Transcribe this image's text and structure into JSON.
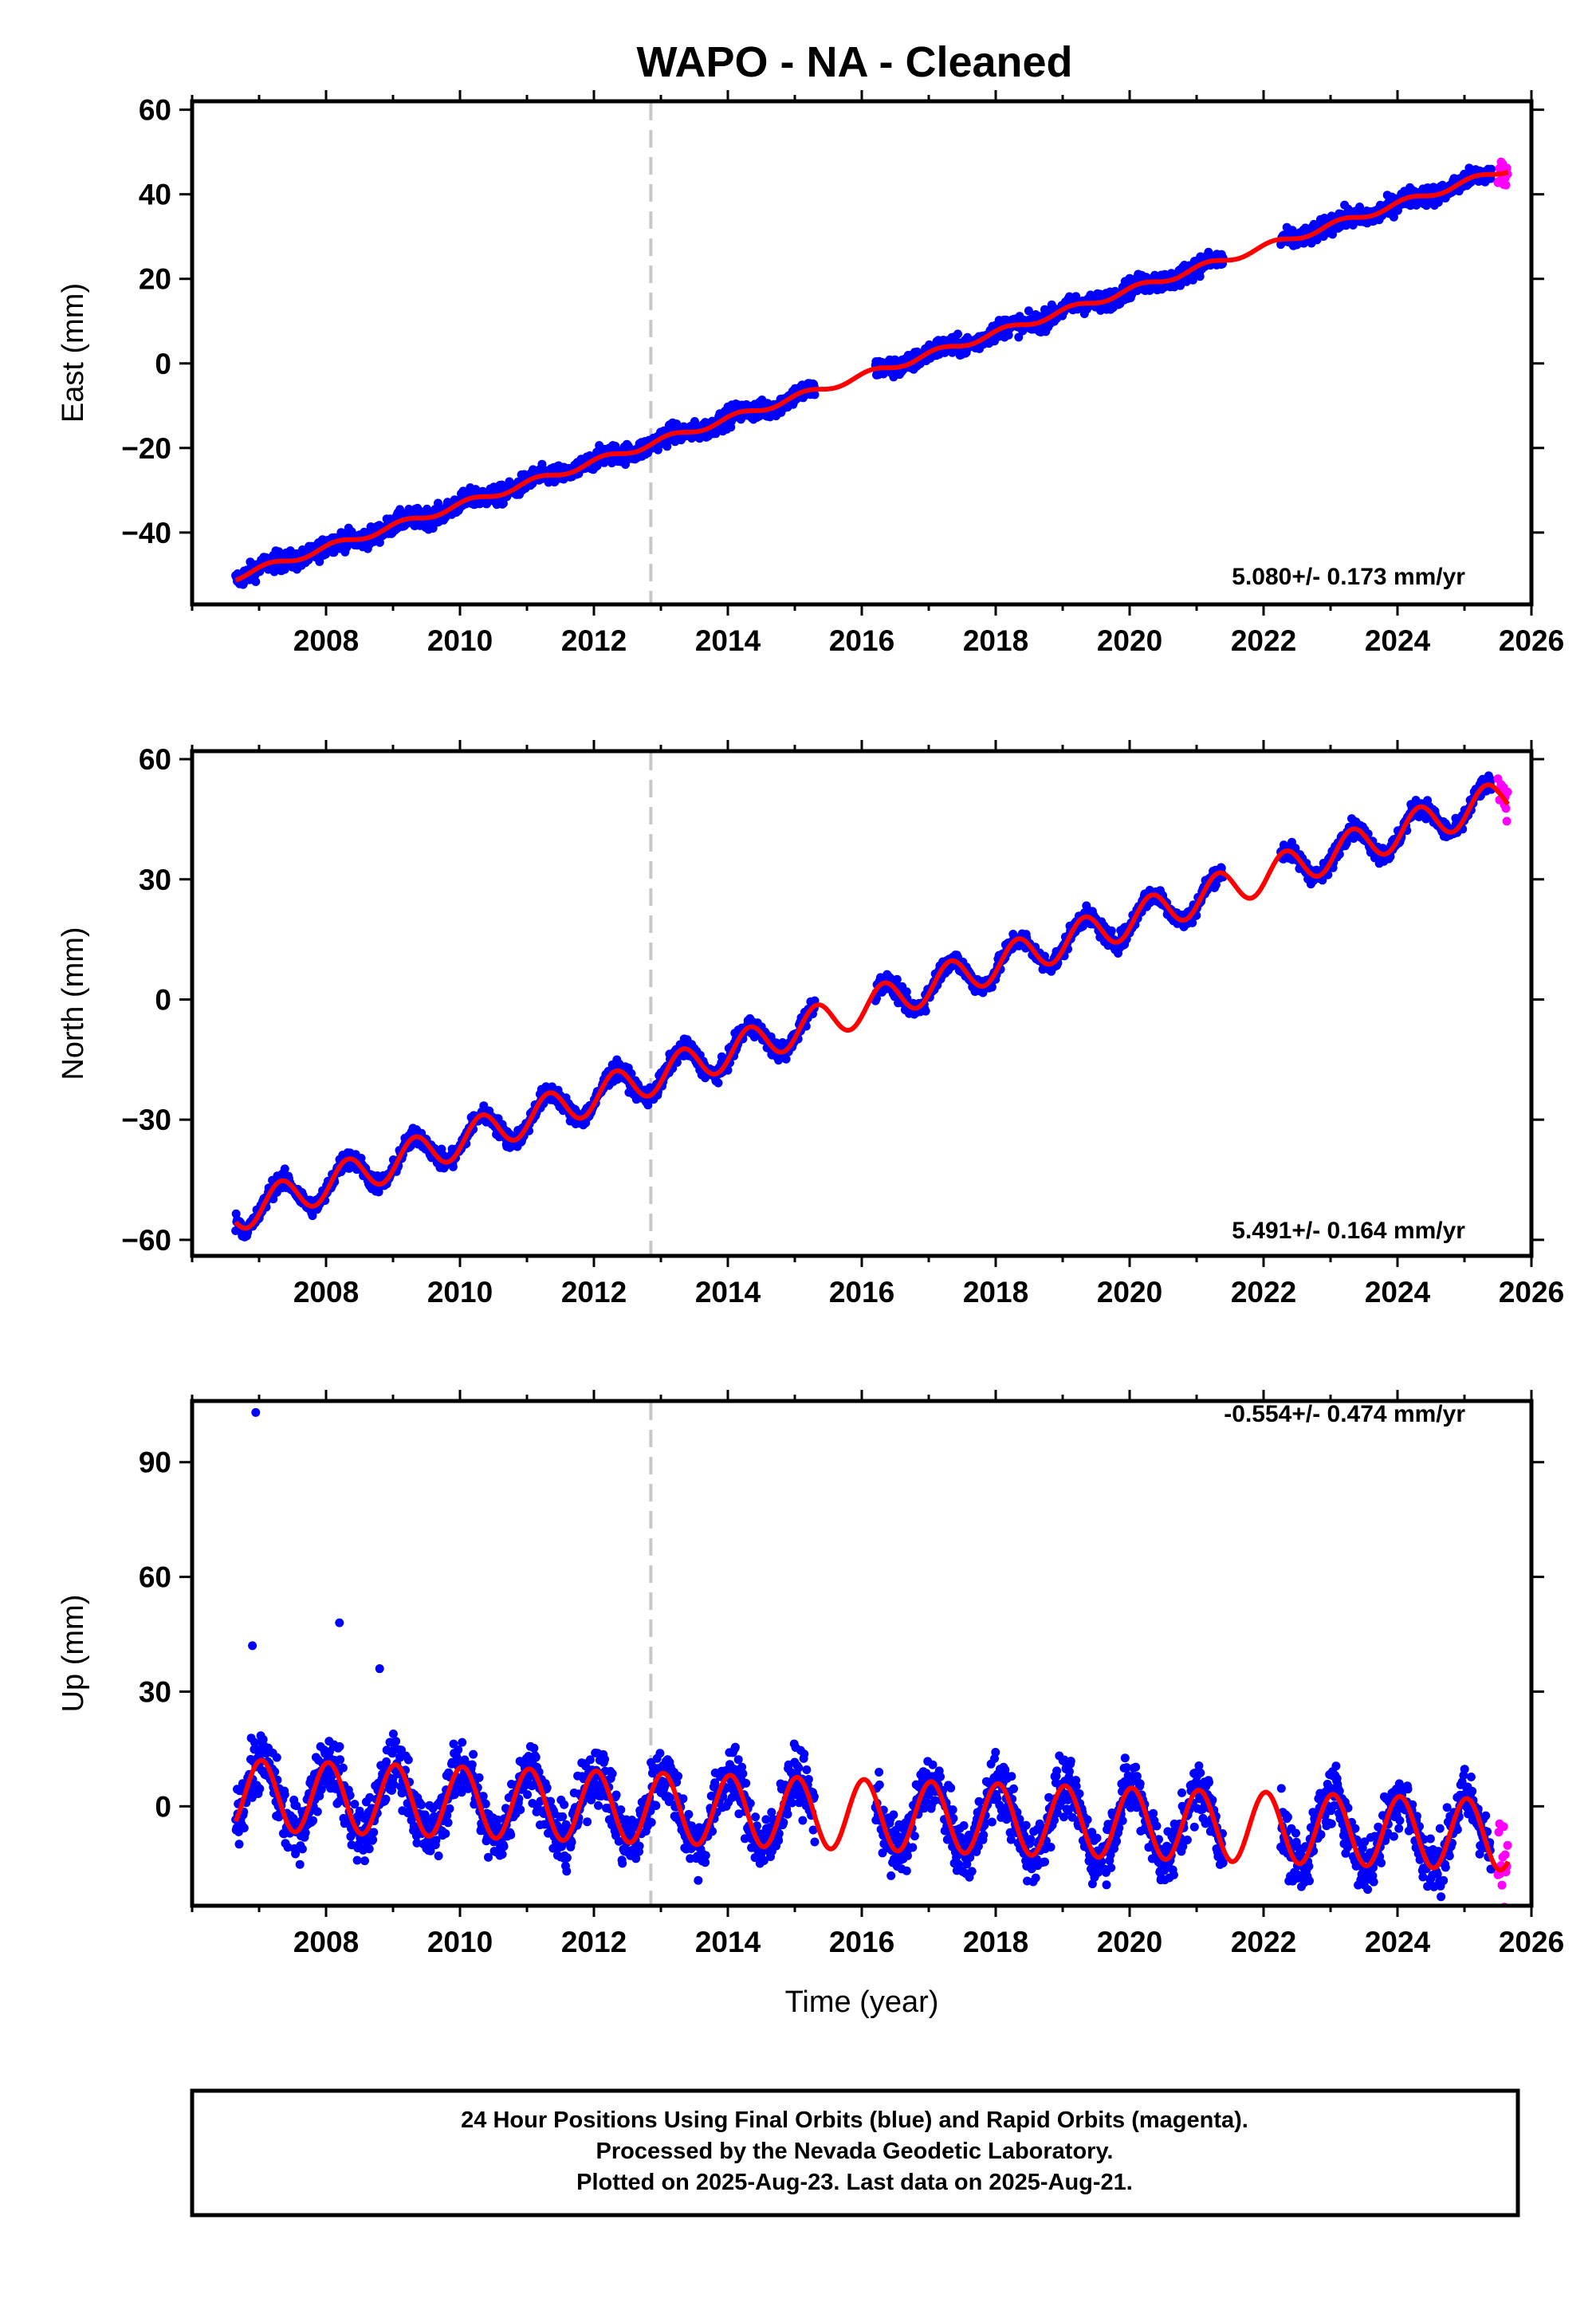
{
  "chart_data": [
    {
      "type": "scatter",
      "title": "WAPO  - NA - Cleaned",
      "xlabel": "",
      "ylabel": "East (mm)",
      "xlim": [
        2006.0,
        2026.0
      ],
      "ylim": [
        -57,
        62
      ],
      "xticks": [
        2008,
        2010,
        2012,
        2014,
        2016,
        2018,
        2020,
        2022,
        2024,
        2026
      ],
      "xtick_labels": [
        "2008",
        "2010",
        "2012",
        "2014",
        "2016",
        "2018",
        "2020",
        "2022",
        "2024",
        "2026"
      ],
      "yticks": [
        -40,
        -20,
        0,
        20,
        40,
        60
      ],
      "ytick_labels": [
        "−40",
        "−20",
        "0",
        "20",
        "40",
        "60"
      ],
      "rate_annotation": "5.080+/- 0.173 mm/yr",
      "event_line_x": 2012.85,
      "grid": false,
      "model": {
        "rate": 5.08,
        "offset": -50.5,
        "t0": 2006.65,
        "amp_sin": 0.6,
        "amp_cos": 0.5
      },
      "final_orbit_windows": [
        [
          2006.65,
          2025.4
        ]
      ],
      "rapid_orbit_window": [
        2025.4,
        2025.65
      ],
      "gaps": [
        [
          2015.3,
          2016.2
        ],
        [
          2021.4,
          2022.25
        ]
      ],
      "colors": {
        "final": "#0000ff",
        "rapid": "#ff00ff",
        "model": "#ff0000",
        "event": "#c8c8c8"
      }
    },
    {
      "type": "scatter",
      "title": "",
      "xlabel": "",
      "ylabel": "North (mm)",
      "xlim": [
        2006.0,
        2026.0
      ],
      "ylim": [
        -64,
        62
      ],
      "xticks": [
        2008,
        2010,
        2012,
        2014,
        2016,
        2018,
        2020,
        2022,
        2024,
        2026
      ],
      "xtick_labels": [
        "2008",
        "2010",
        "2012",
        "2014",
        "2016",
        "2018",
        "2020",
        "2022",
        "2024",
        "2026"
      ],
      "yticks": [
        -60,
        -30,
        0,
        30,
        60
      ],
      "ytick_labels": [
        "−60",
        "−30",
        "0",
        "30",
        "60"
      ],
      "rate_annotation": "5.491+/- 0.164 mm/yr",
      "event_line_x": 2012.85,
      "grid": false,
      "model": {
        "rate": 5.491,
        "offset": -53.5,
        "t0": 2006.65,
        "amp_sin": 4.0,
        "amp_cos": -2.0
      },
      "final_orbit_windows": [
        [
          2006.65,
          2025.4
        ]
      ],
      "rapid_orbit_window": [
        2025.4,
        2025.65
      ],
      "gaps": [
        [
          2015.3,
          2016.2
        ],
        [
          2021.4,
          2022.25
        ]
      ],
      "colors": {
        "final": "#0000ff",
        "rapid": "#ff00ff",
        "model": "#ff0000",
        "event": "#c8c8c8"
      }
    },
    {
      "type": "scatter",
      "title": "",
      "xlabel": "Time (year)",
      "ylabel": "Up (mm)",
      "xlim": [
        2006.0,
        2026.0
      ],
      "ylim": [
        -26,
        106
      ],
      "xticks": [
        2008,
        2010,
        2012,
        2014,
        2016,
        2018,
        2020,
        2022,
        2024,
        2026
      ],
      "xtick_labels": [
        "2008",
        "2010",
        "2012",
        "2014",
        "2016",
        "2018",
        "2020",
        "2022",
        "2024",
        "2026"
      ],
      "yticks": [
        0,
        30,
        60,
        90
      ],
      "ytick_labels": [
        "0",
        "30",
        "60",
        "90"
      ],
      "rate_annotation": "-0.554+/- 0.474 mm/yr",
      "event_line_x": 2012.85,
      "grid": false,
      "model": {
        "rate": -0.554,
        "offset": 3.0,
        "t0": 2006.65,
        "amp_sin": 2.0,
        "amp_cos": 9.0
      },
      "final_orbit_windows": [
        [
          2006.65,
          2025.4
        ]
      ],
      "rapid_orbit_window": [
        2025.4,
        2025.65
      ],
      "gaps": [
        [
          2015.3,
          2016.2
        ],
        [
          2021.4,
          2022.25
        ]
      ],
      "outliers": [
        [
          2006.95,
          103
        ],
        [
          2008.2,
          48
        ],
        [
          2008.8,
          36
        ],
        [
          2006.9,
          42
        ]
      ],
      "colors": {
        "final": "#0000ff",
        "rapid": "#ff00ff",
        "model": "#ff0000",
        "event": "#c8c8c8"
      }
    }
  ],
  "footer": {
    "line1": "24 Hour Positions Using Final Orbits (blue) and Rapid Orbits (magenta).",
    "line2": "Processed by the Nevada Geodetic Laboratory.",
    "line3": "Plotted on 2025-Aug-23. Last data on 2025-Aug-21."
  }
}
